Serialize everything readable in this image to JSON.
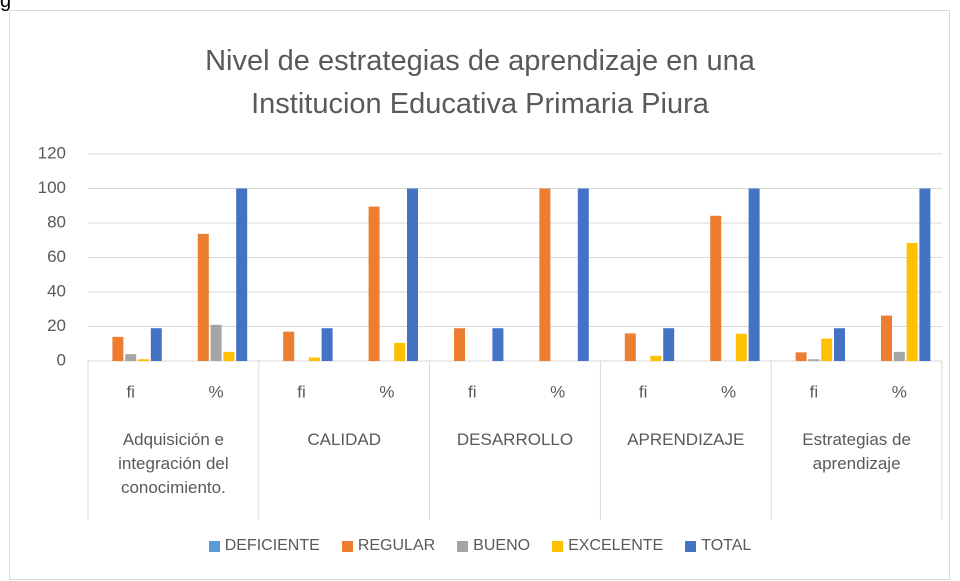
{
  "chart_data": {
    "type": "bar",
    "caption": "g",
    "title": "Nivel de estrategias de aprendizaje en una Institucion Educativa Primaria Piura",
    "categories": [
      "fi",
      "%",
      "fi",
      "%",
      "fi",
      "%",
      "fi",
      "%",
      "fi",
      "%"
    ],
    "groups": [
      "Adquisición e integración del conocimiento.",
      "CALIDAD",
      "DESARROLLO",
      "APRENDIZAJE",
      "Estrategias de aprendizaje"
    ],
    "series": [
      {
        "name": "DEFICIENTE",
        "color": "#5b9bd5",
        "values": [
          0,
          0,
          0,
          0,
          0,
          0,
          0,
          0,
          0,
          0
        ]
      },
      {
        "name": "REGULAR",
        "color": "#ed7d31",
        "values": [
          14,
          73.7,
          17,
          89.5,
          19,
          100,
          16,
          84.2,
          5,
          26.3
        ]
      },
      {
        "name": "BUENO",
        "color": "#a5a5a5",
        "values": [
          4,
          21,
          0,
          0,
          0,
          0,
          0,
          0,
          1,
          5.3
        ]
      },
      {
        "name": "EXCELENTE",
        "color": "#ffc000",
        "values": [
          1,
          5.3,
          2,
          10.5,
          0,
          0,
          3,
          15.8,
          13,
          68.4
        ]
      },
      {
        "name": "TOTAL",
        "color": "#4472c4",
        "values": [
          19,
          100,
          19,
          100,
          19,
          100,
          19,
          100,
          19,
          100
        ]
      }
    ],
    "ylim": [
      0,
      120
    ],
    "yticks": [
      0,
      20,
      40,
      60,
      80,
      100,
      120
    ],
    "grid": true,
    "legend": "bottom"
  }
}
